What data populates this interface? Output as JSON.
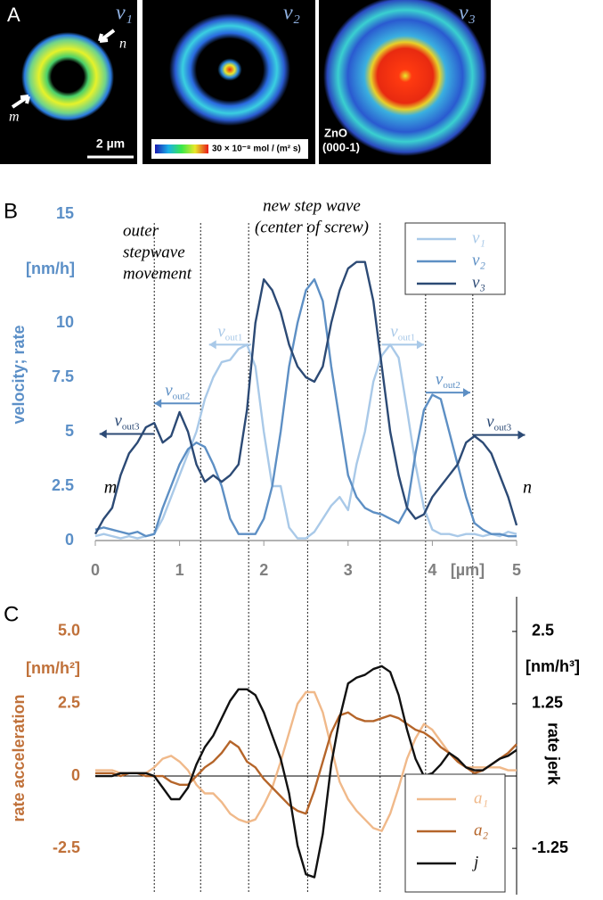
{
  "panel_a": {
    "letter": "A",
    "labels": [
      "v₁",
      "v₂",
      "v₃"
    ],
    "n": "n",
    "m": "m",
    "scale": "2 µm",
    "colorbar": "30 × 10⁻⁸ mol / (m² s)",
    "material": [
      "ZnO",
      "(000-1)"
    ]
  },
  "chart_data": [
    {
      "type": "line",
      "panel": "B",
      "y_label": "velocity; rate",
      "y_unit": "[nm/h]",
      "x_unit": "[µm]",
      "notes": [
        "outer",
        "stepwave",
        "movement"
      ],
      "center_note": [
        "new step wave",
        "(center of screw)"
      ],
      "ends": [
        "m",
        "n"
      ],
      "x": [
        0,
        0.1,
        0.2,
        0.3,
        0.4,
        0.5,
        0.6,
        0.7,
        0.8,
        0.9,
        1,
        1.1,
        1.2,
        1.3,
        1.4,
        1.5,
        1.6,
        1.7,
        1.8,
        1.9,
        2,
        2.1,
        2.2,
        2.3,
        2.4,
        2.5,
        2.6,
        2.7,
        2.8,
        2.9,
        3,
        3.1,
        3.2,
        3.3,
        3.4,
        3.5,
        3.6,
        3.7,
        3.8,
        3.9,
        4,
        4.1,
        4.2,
        4.3,
        4.4,
        4.5,
        4.6,
        4.7,
        4.8,
        4.9,
        5
      ],
      "series": [
        {
          "name": "v₁",
          "color": "#a9c9e8",
          "values": [
            0.2,
            0.3,
            0.2,
            0.1,
            0.2,
            0.1,
            0.2,
            0.3,
            1.0,
            2.0,
            3.0,
            4.0,
            5.0,
            6.5,
            7.5,
            8.2,
            8.3,
            8.8,
            9.0,
            8.0,
            5.0,
            2.5,
            2.5,
            0.6,
            0.1,
            0.1,
            0.4,
            1.0,
            1.6,
            2.0,
            1.4,
            3.5,
            5.0,
            7.3,
            8.5,
            9.0,
            8.4,
            6.0,
            3.5,
            1.5,
            0.5,
            0.3,
            0.3,
            0.2,
            0.3,
            0.3,
            0.2,
            0.3,
            0.2,
            0.4,
            0.3
          ]
        },
        {
          "name": "v₂",
          "color": "#5d8fc4",
          "values": [
            0.5,
            0.6,
            0.5,
            0.4,
            0.3,
            0.4,
            0.2,
            0.3,
            1.5,
            2.5,
            3.5,
            4.2,
            4.5,
            4.3,
            3.5,
            2.5,
            1.0,
            0.3,
            0.3,
            0.3,
            1.0,
            2.5,
            5.0,
            8.0,
            10.0,
            11.5,
            12.0,
            11.0,
            8.0,
            5.5,
            3.0,
            2.0,
            1.5,
            1.3,
            1.2,
            1.0,
            0.8,
            1.5,
            4.0,
            6.0,
            6.7,
            6.5,
            5.0,
            3.5,
            2.0,
            0.8,
            0.5,
            0.3,
            0.3,
            0.2,
            0.2
          ]
        },
        {
          "name": "v₃",
          "color": "#2c4a75",
          "values": [
            0.3,
            1.0,
            1.5,
            3.0,
            4.0,
            4.5,
            5.2,
            5.4,
            4.5,
            4.8,
            5.9,
            5.0,
            3.5,
            2.7,
            3.0,
            2.7,
            3.0,
            3.5,
            6.0,
            10.0,
            12.0,
            11.5,
            10.5,
            9.0,
            8.0,
            7.5,
            7.3,
            8.0,
            10.0,
            11.5,
            12.5,
            12.8,
            12.8,
            11.0,
            8.0,
            5.0,
            3.0,
            1.5,
            1.0,
            1.2,
            2.0,
            2.5,
            3.0,
            3.5,
            4.5,
            4.8,
            4.5,
            4.0,
            3.0,
            2.0,
            0.7
          ]
        }
      ],
      "arrows": [
        {
          "label": "v",
          "sub": "out1",
          "x0": 1.85,
          "x1": 1.35,
          "y": 9,
          "color": "#a9c9e8"
        },
        {
          "label": "v",
          "sub": "out1",
          "x0": 3.4,
          "x1": 3.9,
          "y": 9,
          "color": "#a9c9e8"
        },
        {
          "label": "v",
          "sub": "out2",
          "x0": 1.25,
          "x1": 0.7,
          "y": 6.3,
          "color": "#5d8fc4"
        },
        {
          "label": "v",
          "sub": "out2",
          "x0": 3.92,
          "x1": 4.45,
          "y": 6.8,
          "color": "#5d8fc4"
        },
        {
          "label": "v",
          "sub": "out3",
          "x0": 0.7,
          "x1": 0.05,
          "y": 4.9,
          "color": "#2c4a75"
        },
        {
          "label": "v",
          "sub": "out3",
          "x0": 4.48,
          "x1": 5.1,
          "y": 4.85,
          "color": "#2c4a75"
        }
      ],
      "vlines": [
        0.7,
        1.25,
        1.82,
        2.52,
        3.38,
        3.92,
        4.48
      ],
      "xlim": [
        0,
        5
      ],
      "xticks": [
        0,
        1,
        2,
        3,
        4,
        5
      ],
      "ylim": [
        0,
        15
      ],
      "yticks": [
        0,
        2.5,
        5,
        7.5,
        10,
        15
      ]
    },
    {
      "type": "line",
      "panel": "C",
      "y_label": "rate acceleration",
      "y_unit": "[nm/h²]",
      "y2_label": "rate jerk",
      "y2_unit": "[nm/h³]",
      "x": [
        0,
        0.1,
        0.2,
        0.3,
        0.4,
        0.5,
        0.6,
        0.7,
        0.8,
        0.9,
        1,
        1.1,
        1.2,
        1.3,
        1.4,
        1.5,
        1.6,
        1.7,
        1.8,
        1.9,
        2,
        2.1,
        2.2,
        2.3,
        2.4,
        2.5,
        2.6,
        2.7,
        2.8,
        2.9,
        3,
        3.1,
        3.2,
        3.3,
        3.4,
        3.5,
        3.6,
        3.7,
        3.8,
        3.9,
        4,
        4.1,
        4.2,
        4.3,
        4.4,
        4.5,
        4.6,
        4.7,
        4.8,
        4.9,
        5
      ],
      "series": [
        {
          "name": "a₁",
          "color": "#f0b98a",
          "values": [
            0.2,
            0.2,
            0.2,
            0.1,
            0.1,
            0.1,
            0.1,
            0.3,
            0.6,
            0.7,
            0.5,
            0.2,
            -0.3,
            -0.6,
            -0.6,
            -0.9,
            -1.3,
            -1.5,
            -1.6,
            -1.5,
            -1.0,
            -0.4,
            0.5,
            1.5,
            2.5,
            2.9,
            2.9,
            2.2,
            1.0,
            -0.2,
            -0.8,
            -1.2,
            -1.5,
            -1.8,
            -1.9,
            -1.3,
            -0.4,
            0.6,
            1.3,
            1.8,
            1.6,
            1.2,
            0.8,
            0.5,
            0.3,
            0.3,
            0.3,
            0.3,
            0.3,
            0.2,
            0.2
          ]
        },
        {
          "name": "a₂",
          "color": "#b5652a",
          "values": [
            0.1,
            0.1,
            0.1,
            0,
            0.1,
            0.1,
            0,
            0,
            0,
            -0.2,
            -0.3,
            -0.3,
            0,
            0.3,
            0.5,
            0.8,
            1.2,
            1.0,
            0.5,
            0.3,
            -0.1,
            -0.4,
            -0.7,
            -1.0,
            -1.2,
            -1.3,
            -0.5,
            0.5,
            1.5,
            2.1,
            2.2,
            2.0,
            1.9,
            1.9,
            2.0,
            2.1,
            2.0,
            1.8,
            1.6,
            1.5,
            1.3,
            1.0,
            0.8,
            0.5,
            0.3,
            0.1,
            0.2,
            0.4,
            0.6,
            0.8,
            1.1
          ]
        },
        {
          "name": "j",
          "color": "#111111",
          "axis": "y2",
          "values": [
            0,
            0,
            0,
            0.05,
            0.05,
            0.05,
            0.05,
            0,
            -0.2,
            -0.4,
            -0.4,
            -0.2,
            0.2,
            0.5,
            0.7,
            1.0,
            1.3,
            1.5,
            1.5,
            1.4,
            1.1,
            0.7,
            0.3,
            -0.3,
            -1.2,
            -1.7,
            -1.75,
            -1.0,
            0.2,
            1.0,
            1.6,
            1.7,
            1.75,
            1.85,
            1.9,
            1.8,
            1.4,
            0.8,
            0.3,
            0,
            0.05,
            0.2,
            0.4,
            0.3,
            0.15,
            0.1,
            0.1,
            0.2,
            0.3,
            0.35,
            0.45
          ]
        }
      ],
      "xlim": [
        0,
        5
      ],
      "ylim": [
        -4.1,
        6.2
      ],
      "yticks": [
        -2.5,
        0,
        2.5,
        {
          "value": 5,
          "label": "5.0"
        }
      ],
      "y2lim": [
        -2.05,
        3.1
      ],
      "y2ticks": [
        -1.25,
        1.25,
        2.5
      ]
    }
  ]
}
